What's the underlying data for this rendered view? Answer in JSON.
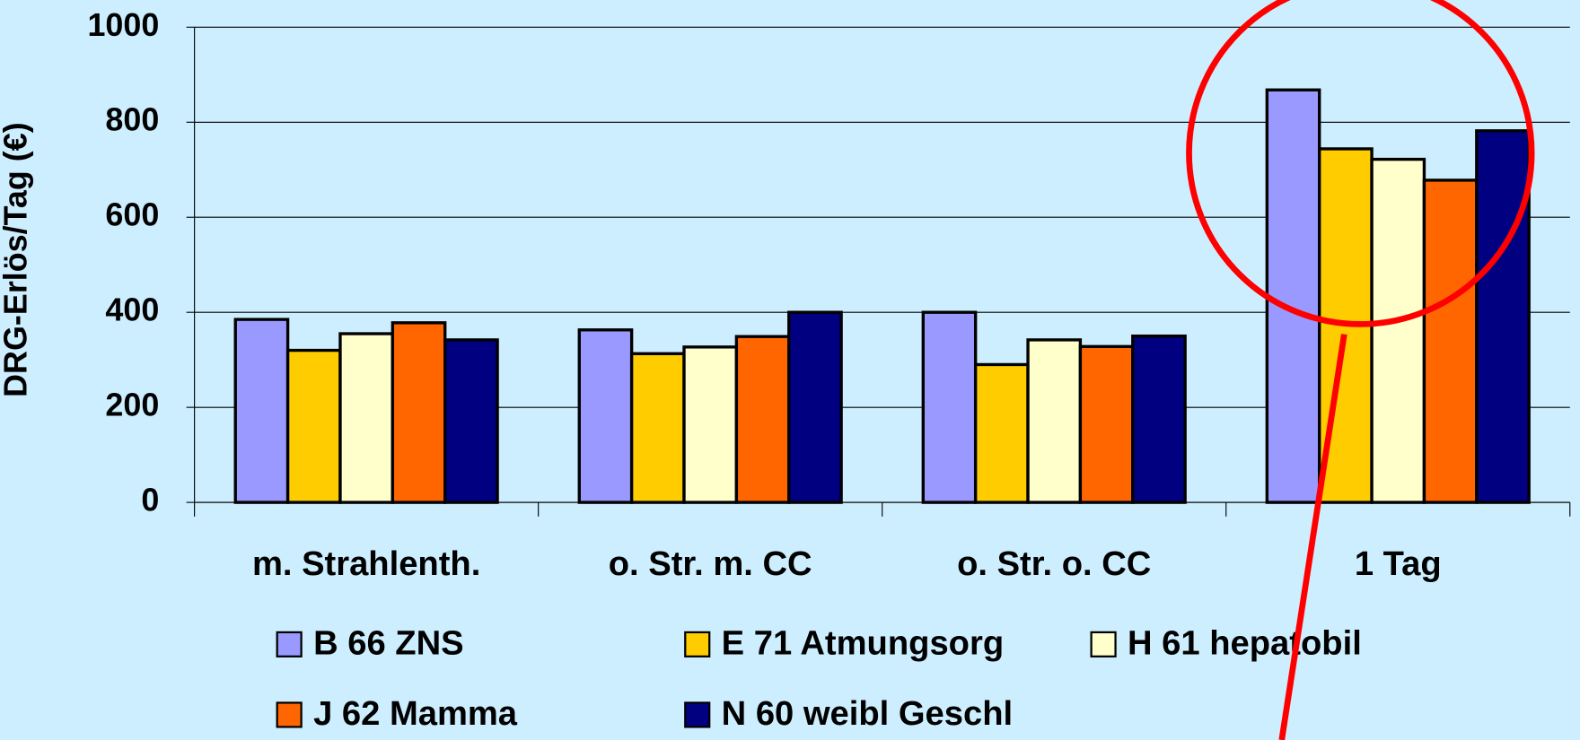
{
  "chart_data": {
    "type": "bar",
    "y_label": "DRG-Erlös/Tag (€)",
    "categories": [
      "m. Strahlenth.",
      "o. Str. m. CC",
      "o. Str. o. CC",
      "1 Tag"
    ],
    "series": [
      {
        "name": "B 66 ZNS",
        "color": "#9999ff",
        "values": [
          385,
          363,
          400,
          868
        ]
      },
      {
        "name": "E 71 Atmungsorg",
        "color": "#ffcc00",
        "values": [
          320,
          313,
          290,
          744
        ]
      },
      {
        "name": "H 61 hepatobil",
        "color": "#ffffcc",
        "values": [
          355,
          327,
          342,
          722
        ]
      },
      {
        "name": "J 62 Mamma",
        "color": "#ff6600",
        "values": [
          378,
          349,
          328,
          678
        ]
      },
      {
        "name": "N 60 weibl Geschl",
        "color": "#000080",
        "values": [
          342,
          400,
          350,
          782
        ]
      }
    ],
    "ylim": [
      0,
      1000
    ],
    "yticks": [
      0,
      200,
      400,
      600,
      800,
      1000
    ],
    "grid": true
  }
}
